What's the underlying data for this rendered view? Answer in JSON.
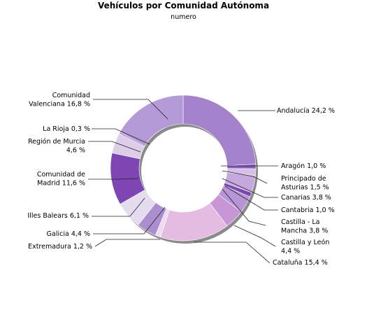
{
  "chart_data": {
    "type": "pie",
    "title": "Vehículos por Comunidad Autónoma",
    "subtitle": "numero",
    "donut": true,
    "slices": [
      {
        "label": [
          "Andalucía 24,2 %"
        ],
        "value": 24.2,
        "color": "#a582cc"
      },
      {
        "label": [
          "Aragón 1,0 %"
        ],
        "value": 1.0,
        "color": "#8a5cbe"
      },
      {
        "label": [
          "Principado de",
          "Asturias 1,5 %"
        ],
        "value": 1.5,
        "color": "#d6c0e8"
      },
      {
        "label": [
          "Canarias 3,8 %"
        ],
        "value": 3.8,
        "color": "#c4a8de"
      },
      {
        "label": [
          "Cantabria 1,0 %"
        ],
        "value": 1.0,
        "color": "#7c48b0"
      },
      {
        "label": [
          "Castilla - La",
          "Mancha 3,8 %"
        ],
        "value": 3.8,
        "color": "#b696d6"
      },
      {
        "label": [
          "Castilla y León",
          "4,4 %"
        ],
        "value": 4.4,
        "color": "#c896d6"
      },
      {
        "label": [
          "Cataluña 15,4 %"
        ],
        "value": 15.4,
        "color": "#e4bce2"
      },
      {
        "label": [
          "Extremadura 1,2 %"
        ],
        "value": 1.2,
        "color": "#ecdcf2"
      },
      {
        "label": [
          "Galicia 4,4 %"
        ],
        "value": 4.4,
        "color": "#ab8ed0"
      },
      {
        "label": [
          "Illes Balears 6,1 %"
        ],
        "value": 6.1,
        "color": "#e6dcf0"
      },
      {
        "label": [
          "Comunidad de",
          "Madrid 11,6 %"
        ],
        "value": 11.6,
        "color": "#7e46b2"
      },
      {
        "label": [
          "Región de Murcia",
          "4,6 %"
        ],
        "value": 4.6,
        "color": "#ddcde9"
      },
      {
        "label": [
          "La Rioja 0,3 %"
        ],
        "value": 0.3,
        "color": "#9a74c2"
      },
      {
        "label": [
          "Comunidad",
          "Valenciana 16,8 %"
        ],
        "value": 16.8,
        "color": "#b49ad6"
      }
    ]
  }
}
